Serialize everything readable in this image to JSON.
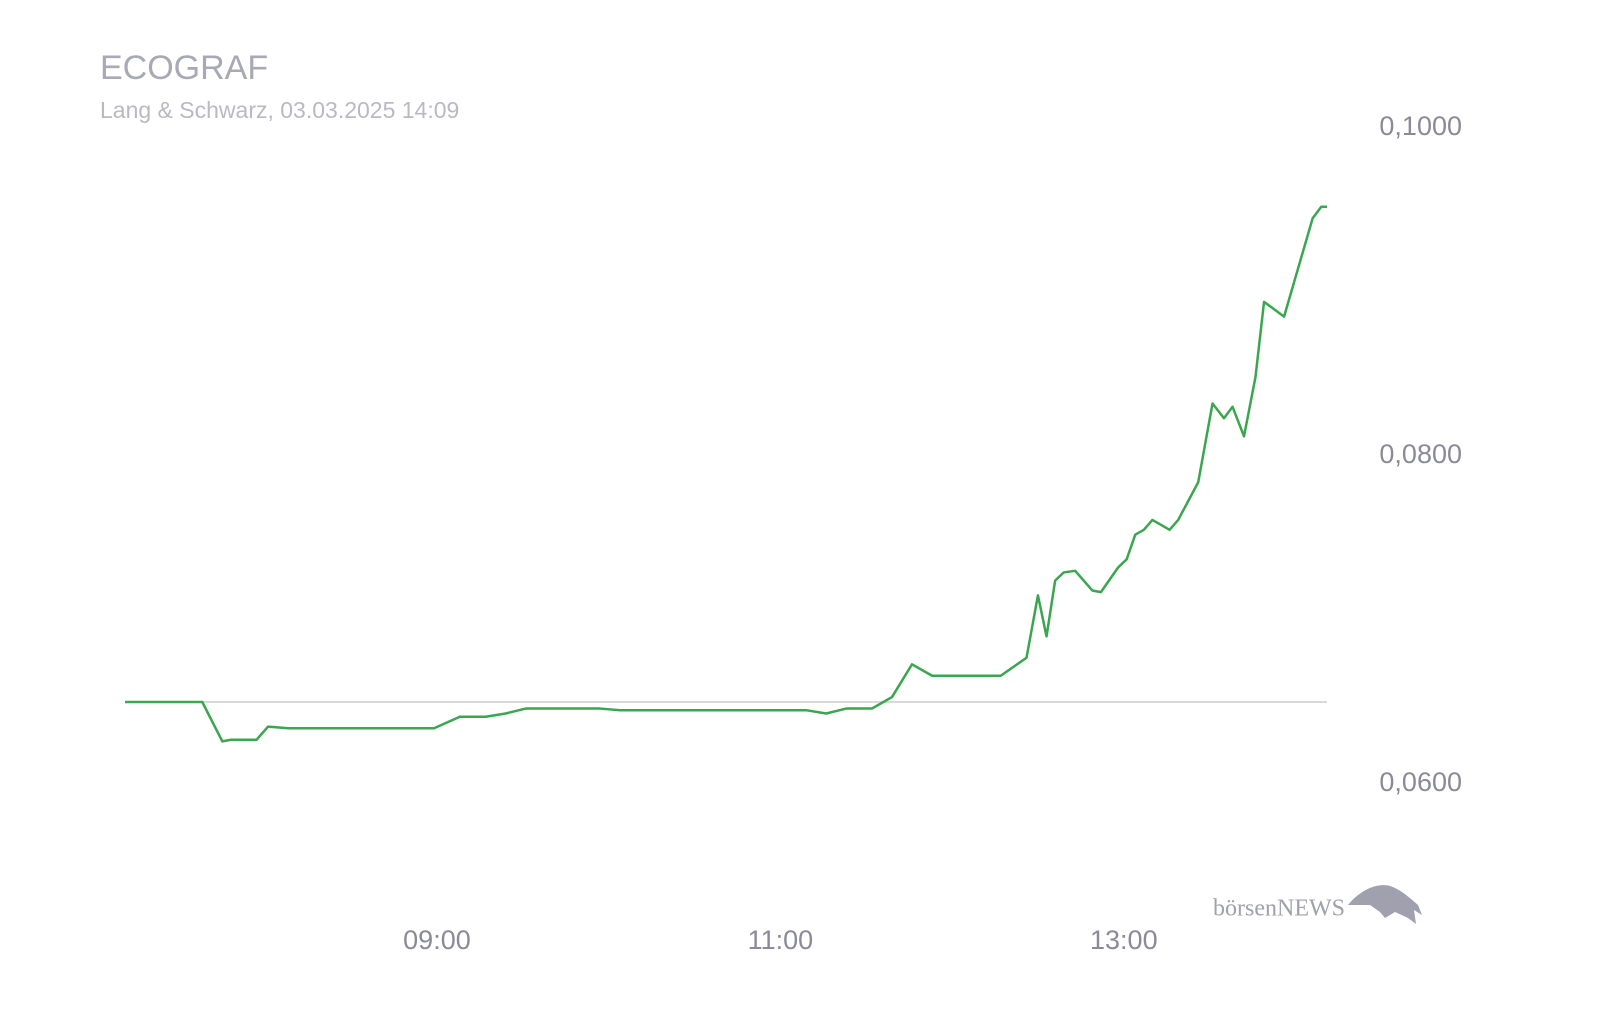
{
  "chart_data": {
    "type": "line",
    "title": "ECOGRAF",
    "subtitle": "Lang & Schwarz, 03.03.2025 14:09",
    "branding": "börsenNEWS",
    "x": [
      431,
      458,
      465,
      468,
      477,
      481,
      488,
      539,
      548,
      557,
      564,
      571,
      597,
      604,
      669,
      676,
      683,
      692,
      699,
      706,
      713,
      737,
      746,
      750,
      753,
      756,
      759,
      763,
      769,
      772,
      778,
      781,
      784,
      787,
      790,
      796,
      799,
      806,
      811,
      815,
      818,
      822,
      826,
      829,
      836,
      842,
      846,
      849,
      851
    ],
    "series": [
      {
        "color": "#3aa64f",
        "values": [
          0.065,
          0.065,
          0.0626,
          0.0627,
          0.0627,
          0.0635,
          0.0634,
          0.0634,
          0.0641,
          0.0641,
          0.0643,
          0.0646,
          0.0646,
          0.0645,
          0.0645,
          0.0643,
          0.0646,
          0.0646,
          0.0653,
          0.0673,
          0.0666,
          0.0666,
          0.0677,
          0.0715,
          0.069,
          0.0724,
          0.0729,
          0.073,
          0.0718,
          0.0717,
          0.0732,
          0.0737,
          0.0752,
          0.0755,
          0.0761,
          0.0755,
          0.0761,
          0.0784,
          0.0832,
          0.0823,
          0.083,
          0.0812,
          0.0848,
          0.0894,
          0.0885,
          0.0921,
          0.0945,
          0.0952,
          0.0952
        ]
      }
    ],
    "reference_line": 0.065,
    "reference_color": "#d9d9d9",
    "xlim": [
      431,
      851
    ],
    "xticks": [
      {
        "value": 540,
        "label": "09:00"
      },
      {
        "value": 660,
        "label": "11:00"
      },
      {
        "value": 780,
        "label": "13:00"
      }
    ],
    "ylim": [
      0.055,
      0.1
    ],
    "yticks": [
      {
        "value": 0.06,
        "label": "0,0600"
      },
      {
        "value": 0.08,
        "label": "0,0800"
      },
      {
        "value": 0.1,
        "label": "0,1000"
      }
    ],
    "grid": false
  }
}
